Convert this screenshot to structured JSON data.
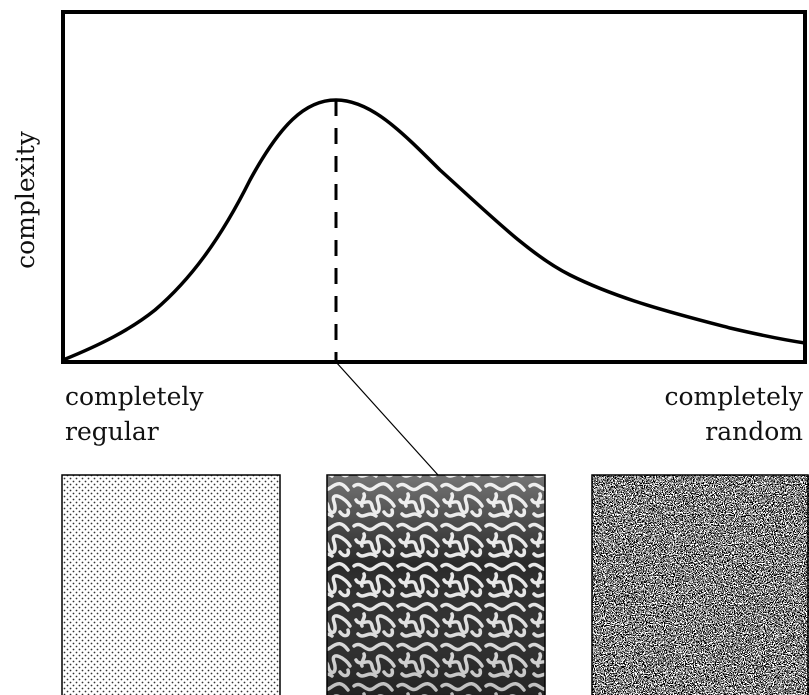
{
  "y_axis": {
    "label": "complexity"
  },
  "x_axis": {
    "left": [
      "completely",
      "regular"
    ],
    "right": [
      "completely",
      "random"
    ]
  }
}
